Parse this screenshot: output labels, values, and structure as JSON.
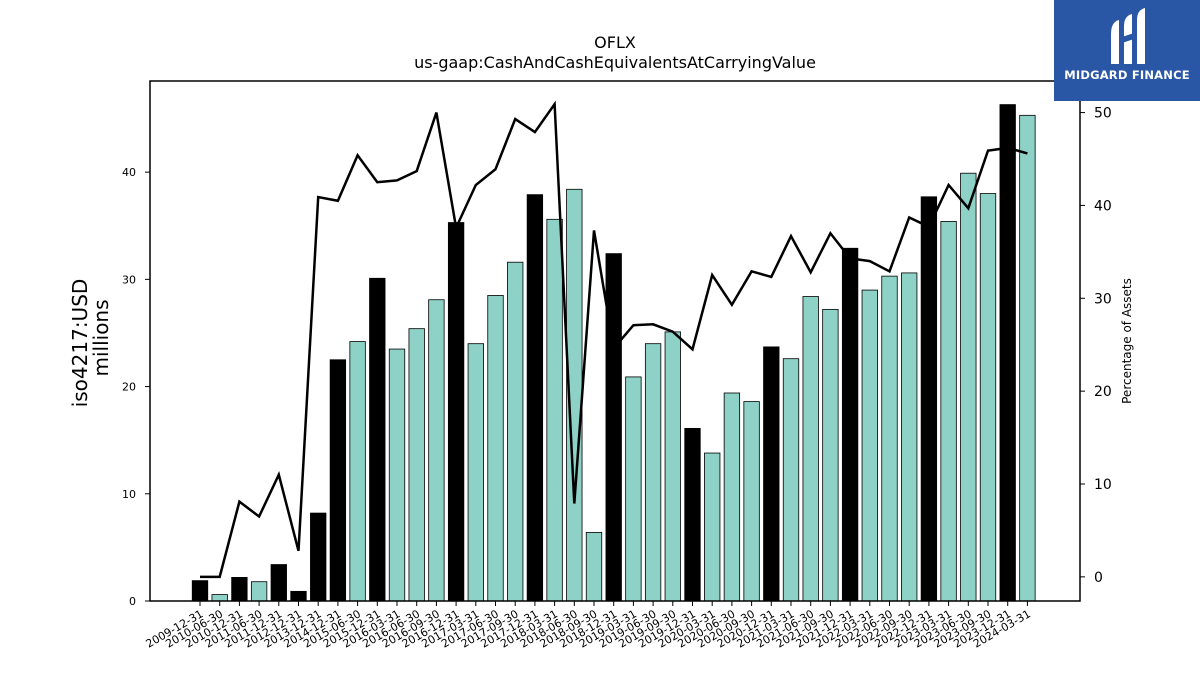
{
  "logo": {
    "text": "MIDGARD FINANCE",
    "bg_color": "#2a56a6"
  },
  "chart_data": {
    "type": "bar",
    "title": "OFLX",
    "subtitle": "us-gaap:CashAndCashEquivalentsAtCarryingValue",
    "ylabel_left": "iso4217:USD",
    "ylabel_left_line2": "millions",
    "ylabel_right": "Percentage of Assets",
    "ylim_left": [
      0,
      48.5
    ],
    "ylim_right": [
      -2.6,
      53.4
    ],
    "yticks_left": [
      0,
      10,
      20,
      30,
      40
    ],
    "yticks_right": [
      0,
      10,
      20,
      30,
      40,
      50
    ],
    "colors": {
      "annual_bar": "#000000",
      "quarter_bar": "#8ed1c6",
      "line": "#000000"
    },
    "categories": [
      "2009-12-31",
      "2010-06-30",
      "2010-12-31",
      "2011-06-30",
      "2011-12-31",
      "2012-12-31",
      "2013-12-31",
      "2014-12-31",
      "2015-06-30",
      "2015-12-31",
      "2016-03-31",
      "2016-06-30",
      "2016-09-30",
      "2016-12-31",
      "2017-03-31",
      "2017-06-30",
      "2017-09-30",
      "2017-12-31",
      "2018-03-31",
      "2018-06-30",
      "2018-09-30",
      "2018-12-31",
      "2019-03-31",
      "2019-06-30",
      "2019-09-30",
      "2019-12-31",
      "2020-03-31",
      "2020-06-30",
      "2020-09-30",
      "2020-12-31",
      "2021-03-31",
      "2021-06-30",
      "2021-09-30",
      "2021-12-31",
      "2022-03-31",
      "2022-06-30",
      "2022-09-30",
      "2022-12-31",
      "2023-03-31",
      "2023-06-30",
      "2023-09-30",
      "2023-12-31",
      "2024-03-31"
    ],
    "annual": [
      true,
      false,
      true,
      false,
      true,
      true,
      true,
      true,
      false,
      true,
      false,
      false,
      false,
      true,
      false,
      false,
      false,
      true,
      false,
      false,
      false,
      true,
      false,
      false,
      false,
      true,
      false,
      false,
      false,
      true,
      false,
      false,
      false,
      true,
      false,
      false,
      false,
      true,
      false,
      false,
      false,
      true,
      false
    ],
    "values": [
      1.9,
      0.6,
      2.2,
      1.8,
      3.4,
      0.9,
      8.2,
      22.5,
      24.2,
      30.1,
      23.5,
      25.4,
      28.1,
      35.3,
      24.0,
      28.5,
      31.6,
      37.9,
      35.6,
      38.4,
      6.4,
      32.4,
      20.9,
      24.0,
      25.1,
      16.1,
      13.8,
      19.4,
      18.6,
      23.7,
      22.6,
      28.4,
      27.2,
      32.9,
      29.0,
      30.3,
      30.6,
      37.7,
      35.4,
      39.9,
      38.0,
      46.3,
      45.3
    ],
    "pct_of_assets": [
      0.0,
      0.0,
      8.1,
      6.5,
      11.0,
      2.8,
      40.9,
      40.5,
      45.4,
      42.5,
      42.7,
      43.7,
      50.0,
      37.6,
      42.2,
      43.9,
      49.3,
      47.9,
      50.9,
      7.9,
      37.3,
      24.6,
      27.1,
      27.2,
      26.4,
      24.5,
      32.5,
      29.3,
      32.9,
      32.3,
      36.7,
      32.8,
      37.0,
      34.3,
      34.0,
      32.9,
      38.7,
      37.7,
      42.2,
      39.7,
      45.9,
      46.2,
      45.6
    ]
  }
}
